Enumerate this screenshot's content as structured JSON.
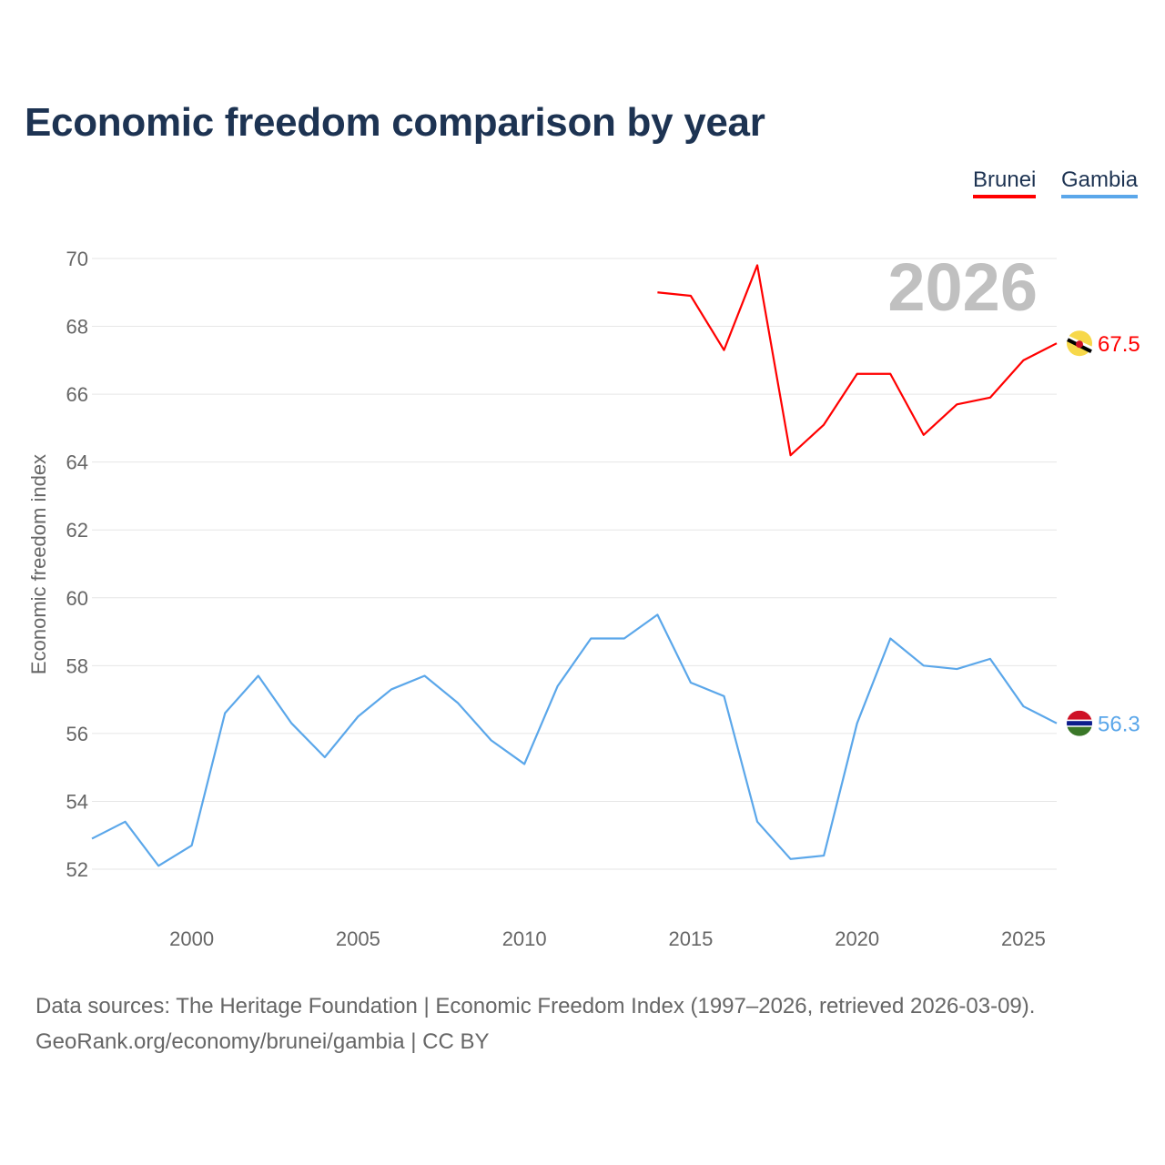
{
  "chart_data": {
    "type": "line",
    "title": "Economic freedom comparison by year",
    "ylabel": "Economic freedom index",
    "xlabel": "",
    "xlim": [
      1997,
      2026
    ],
    "ylim": [
      52,
      70
    ],
    "yticks": [
      52,
      54,
      56,
      58,
      60,
      62,
      64,
      66,
      68,
      70
    ],
    "xticks": [
      2000,
      2005,
      2010,
      2015,
      2020,
      2025
    ],
    "grid": true,
    "legend_placement": "top-right",
    "year_watermark": "2026",
    "series": [
      {
        "name": "Brunei",
        "color": "#ff0000",
        "end_label": "67.5",
        "x": [
          2014,
          2015,
          2016,
          2017,
          2018,
          2019,
          2020,
          2021,
          2022,
          2023,
          2024,
          2025,
          2026
        ],
        "values": [
          69.0,
          68.9,
          67.3,
          69.8,
          64.2,
          65.1,
          66.6,
          66.6,
          64.8,
          65.7,
          65.9,
          67.0,
          67.5
        ]
      },
      {
        "name": "Gambia",
        "color": "#5ba7ea",
        "end_label": "56.3",
        "x": [
          1997,
          1998,
          1999,
          2000,
          2001,
          2002,
          2003,
          2004,
          2005,
          2006,
          2007,
          2008,
          2009,
          2010,
          2011,
          2012,
          2013,
          2014,
          2015,
          2016,
          2017,
          2018,
          2019,
          2020,
          2021,
          2022,
          2023,
          2024,
          2025,
          2026
        ],
        "values": [
          52.9,
          53.4,
          52.1,
          52.7,
          56.6,
          57.7,
          56.3,
          55.3,
          56.5,
          57.3,
          57.7,
          56.9,
          55.8,
          55.1,
          57.4,
          58.8,
          58.8,
          59.5,
          57.5,
          57.1,
          53.4,
          52.3,
          52.4,
          56.3,
          58.8,
          58.0,
          57.9,
          58.2,
          56.8,
          56.3
        ]
      }
    ]
  },
  "footer": {
    "line1": "Data sources: The Heritage Foundation | Economic Freedom Index (1997–2026, retrieved 2026-03-09).",
    "line2": "GeoRank.org/economy/brunei/gambia | CC BY"
  }
}
